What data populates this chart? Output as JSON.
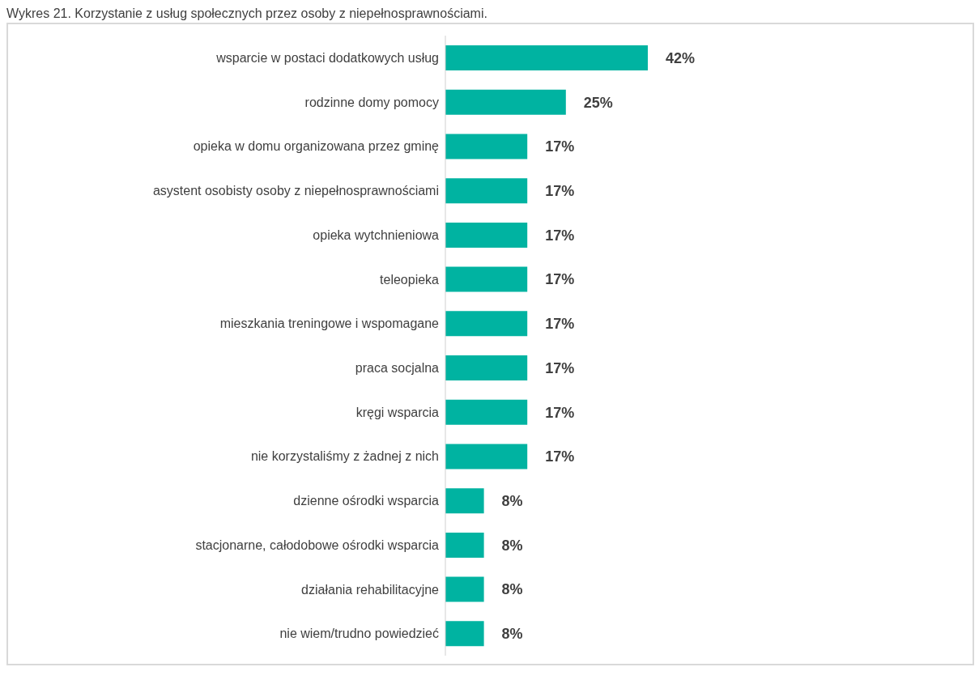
{
  "chart_data": {
    "type": "bar",
    "orientation": "horizontal",
    "title": "Wykres 21. Korzystanie z usług społecznych przez osoby z niepełnosprawnościami.",
    "categories": [
      "wsparcie w postaci dodatkowych usług",
      "rodzinne domy pomocy",
      "opieka w domu organizowana przez gminę",
      "asystent osobisty osoby z niepełnosprawnościami",
      "opieka wytchnieniowa",
      "teleopieka",
      "mieszkania treningowe i wspomagane",
      "praca socjalna",
      "kręgi wsparcia",
      "nie korzystaliśmy z żadnej z nich",
      "dzienne ośrodki wsparcia",
      "stacjonarne, całodobowe ośrodki wsparcia",
      "działania rehabilitacyjne",
      "nie wiem/trudno powiedzieć"
    ],
    "values": [
      42,
      25,
      17,
      17,
      17,
      17,
      17,
      17,
      17,
      17,
      8,
      8,
      8,
      8
    ],
    "value_labels": [
      "42%",
      "25%",
      "17%",
      "17%",
      "17%",
      "17%",
      "17%",
      "17%",
      "17%",
      "17%",
      "8%",
      "8%",
      "8%",
      "8%"
    ],
    "color": "#00b3a1",
    "grid": false,
    "legend": false
  }
}
